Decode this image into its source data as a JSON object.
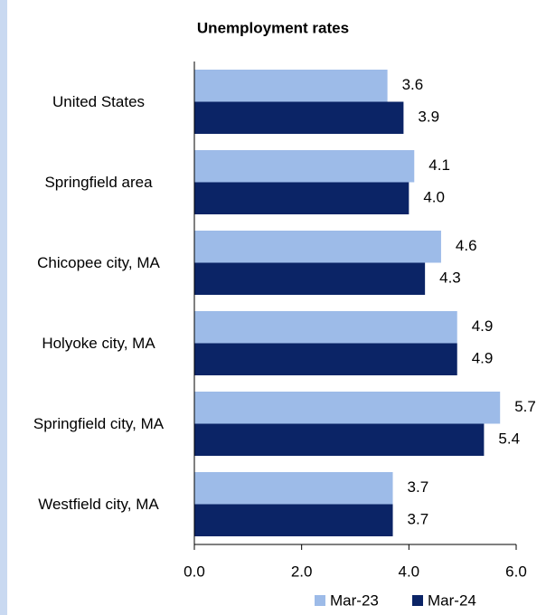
{
  "chart_data": {
    "type": "hbar",
    "title": "Unemployment rates",
    "categories": [
      "United States",
      "Springfield area",
      "Chicopee city, MA",
      "Holyoke city, MA",
      "Springfield city, MA",
      "Westfield city, MA"
    ],
    "series": [
      {
        "name": "Mar-23",
        "color": "#9dbbe8",
        "values": [
          3.6,
          4.1,
          4.6,
          4.9,
          5.7,
          3.7
        ],
        "value_labels": [
          "3.6",
          "4.1",
          "4.6",
          "4.9",
          "5.7",
          "3.7"
        ]
      },
      {
        "name": "Mar-24",
        "color": "#0b2466",
        "values": [
          3.9,
          4.0,
          4.3,
          4.9,
          5.4,
          3.7
        ],
        "value_labels": [
          "3.9",
          "4.0",
          "4.3",
          "4.9",
          "5.4",
          "3.7"
        ]
      }
    ],
    "xlim": [
      0,
      6
    ],
    "xticks": [
      {
        "value": 0,
        "label": "0.0"
      },
      {
        "value": 2,
        "label": "2.0"
      },
      {
        "value": 4,
        "label": "4.0"
      },
      {
        "value": 6,
        "label": "6.0"
      }
    ],
    "legend": "bottom-right"
  }
}
